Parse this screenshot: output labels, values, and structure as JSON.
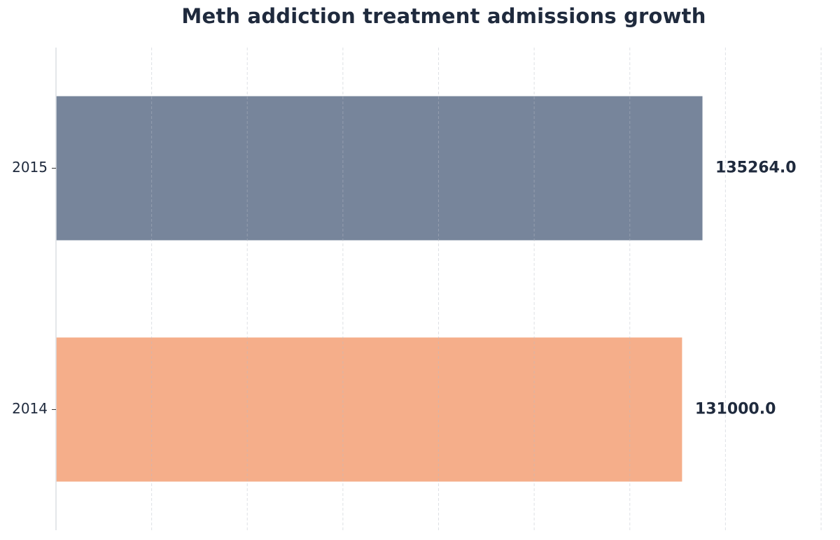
{
  "chart_data": {
    "type": "bar",
    "orientation": "horizontal",
    "title": "Meth addiction treatment admissions growth",
    "xlabel": "",
    "ylabel": "",
    "categories": [
      "2015",
      "2014"
    ],
    "values": [
      135264.0,
      131000.0
    ],
    "value_labels": [
      "135264.0",
      "131000.0"
    ],
    "colors": [
      "#77859b",
      "#f5ae8a"
    ],
    "xlim": [
      0,
      160000
    ],
    "grid": true,
    "legend": "none"
  }
}
